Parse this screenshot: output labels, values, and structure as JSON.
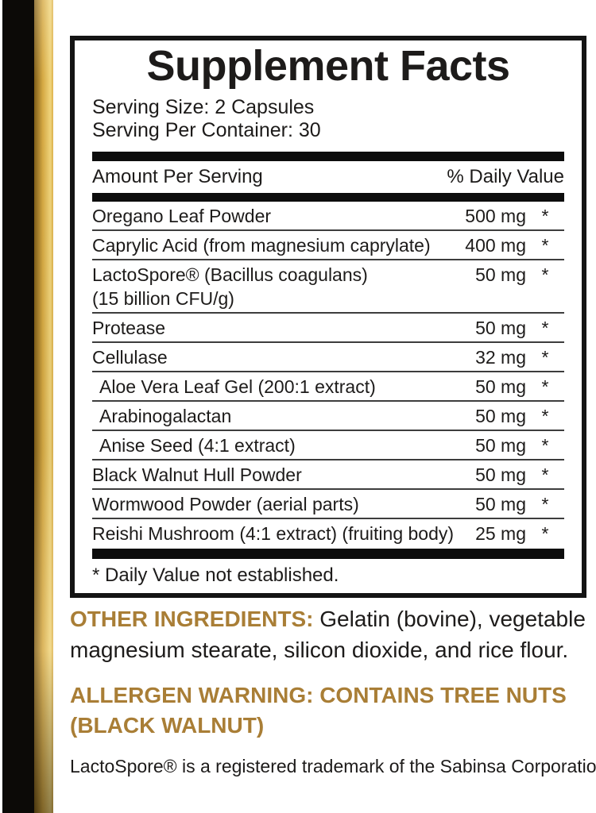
{
  "colors": {
    "gold_text": "#a97e36",
    "stripe_gold": "#d5a943",
    "ink": "#1d1b1a"
  },
  "panel": {
    "title": "Supplement Facts",
    "serving_size": "Serving Size: 2 Capsules",
    "servings_per_container": "Serving Per Container: 30",
    "header": {
      "amount_label": "Amount Per Serving",
      "dv_label": "% Daily Value"
    },
    "rows": [
      {
        "name": "Oregano Leaf Powder",
        "amount": "500 mg",
        "dv": "*"
      },
      {
        "name": "Caprylic Acid (from magnesium caprylate)",
        "amount": "400 mg",
        "dv": "*"
      },
      {
        "name": "LactoSpore® (Bacillus coagulans)",
        "name2": "(15 billion CFU/g)",
        "amount": "50 mg",
        "dv": "*"
      },
      {
        "name": "Protease",
        "amount": "50 mg",
        "dv": "*"
      },
      {
        "name": "Cellulase",
        "amount": "32 mg",
        "dv": "*"
      },
      {
        "name": "Aloe Vera Leaf Gel (200:1 extract)",
        "amount": "50 mg",
        "dv": "*",
        "indent": true
      },
      {
        "name": "Arabinogalactan",
        "amount": "50 mg",
        "dv": "*",
        "indent": true
      },
      {
        "name": "Anise Seed (4:1 extract)",
        "amount": "50 mg",
        "dv": "*",
        "indent": true
      },
      {
        "name": "Black Walnut Hull Powder",
        "amount": "50 mg",
        "dv": "*"
      },
      {
        "name": "Wormwood Powder (aerial parts)",
        "amount": "50 mg",
        "dv": "*"
      },
      {
        "name": "Reishi Mushroom (4:1 extract) (fruiting body)",
        "amount": "25 mg",
        "dv": "*"
      }
    ],
    "footnote": "* Daily Value not established."
  },
  "other_ingredients": {
    "label": "OTHER INGREDIENTS:",
    "text": " Gelatin (bovine), vegetable magnesium stearate, silicon dioxide, and rice flour."
  },
  "allergen_warning": "ALLERGEN WARNING: CONTAINS TREE NUTS (BLACK WALNUT)",
  "trademark_note": "LactoSpore® is a registered trademark of the Sabinsa Corporation"
}
